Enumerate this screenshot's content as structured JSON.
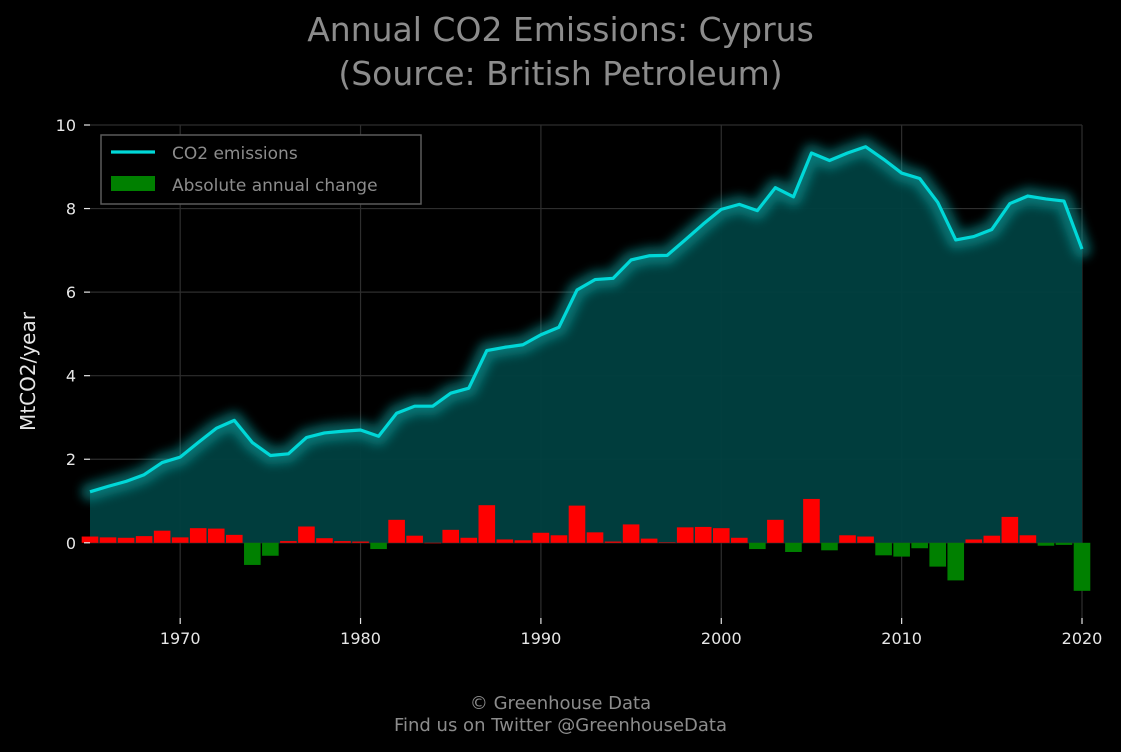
{
  "page": {
    "title_line1": "Annual CO2 Emissions: Cyprus",
    "title_line2": "(Source: British Petroleum)",
    "footer_line1": "© Greenhouse Data",
    "footer_line2": "Find us on Twitter @GreenhouseData"
  },
  "colors": {
    "background": "#000000",
    "line": "#00d8d8",
    "fill": "#004040",
    "increase": "#ff0000",
    "decrease": "#008000",
    "grid": "#2e2e2e",
    "text": "#e6e6e6"
  },
  "chart_data": {
    "type": "line",
    "title": "Annual CO2 Emissions: Cyprus\n(Source: British Petroleum)",
    "xlabel": "",
    "ylabel": "MtCO2/year",
    "xlim": [
      1965,
      2020
    ],
    "ylim": [
      -1.8,
      10
    ],
    "xticks": [
      1970,
      1980,
      1990,
      2000,
      2010,
      2020
    ],
    "yticks": [
      0,
      2,
      4,
      6,
      8,
      10
    ],
    "grid": true,
    "legend_position": "top-left",
    "legend": [
      "CO2 emissions",
      "Absolute annual change"
    ],
    "x": [
      1965,
      1966,
      1967,
      1968,
      1969,
      1970,
      1971,
      1972,
      1973,
      1974,
      1975,
      1976,
      1977,
      1978,
      1979,
      1980,
      1981,
      1982,
      1983,
      1984,
      1985,
      1986,
      1987,
      1988,
      1989,
      1990,
      1991,
      1992,
      1993,
      1994,
      1995,
      1996,
      1997,
      1998,
      1999,
      2000,
      2001,
      2002,
      2003,
      2004,
      2005,
      2006,
      2007,
      2008,
      2009,
      2010,
      2011,
      2012,
      2013,
      2014,
      2015,
      2016,
      2017,
      2018,
      2019,
      2020
    ],
    "series": [
      {
        "name": "CO2 emissions",
        "type": "line",
        "values": [
          1.22,
          1.35,
          1.47,
          1.63,
          1.92,
          2.05,
          2.4,
          2.74,
          2.93,
          2.4,
          2.09,
          2.13,
          2.52,
          2.63,
          2.67,
          2.7,
          2.55,
          3.1,
          3.27,
          3.27,
          3.58,
          3.7,
          4.6,
          4.68,
          4.74,
          4.98,
          5.16,
          6.05,
          6.3,
          6.33,
          6.77,
          6.87,
          6.88,
          7.25,
          7.63,
          7.98,
          8.1,
          7.95,
          8.5,
          8.28,
          9.33,
          9.15,
          9.33,
          9.48,
          9.18,
          8.85,
          8.72,
          8.15,
          7.25,
          7.33,
          7.5,
          8.12,
          8.3,
          8.23,
          8.18,
          7.03
        ]
      },
      {
        "name": "Absolute annual change",
        "type": "bar",
        "values": [
          0.15,
          0.13,
          0.12,
          0.16,
          0.29,
          0.13,
          0.35,
          0.34,
          0.19,
          -0.53,
          -0.31,
          0.04,
          0.39,
          0.11,
          0.04,
          0.03,
          -0.15,
          0.55,
          0.17,
          0.0,
          0.31,
          0.12,
          0.9,
          0.08,
          0.06,
          0.24,
          0.18,
          0.89,
          0.25,
          0.03,
          0.44,
          0.1,
          0.01,
          0.37,
          0.38,
          0.35,
          0.12,
          -0.15,
          0.55,
          -0.22,
          1.05,
          -0.18,
          0.18,
          0.15,
          -0.3,
          -0.33,
          -0.13,
          -0.57,
          -0.9,
          0.08,
          0.17,
          0.62,
          0.18,
          -0.07,
          -0.05,
          -1.15
        ]
      }
    ]
  }
}
